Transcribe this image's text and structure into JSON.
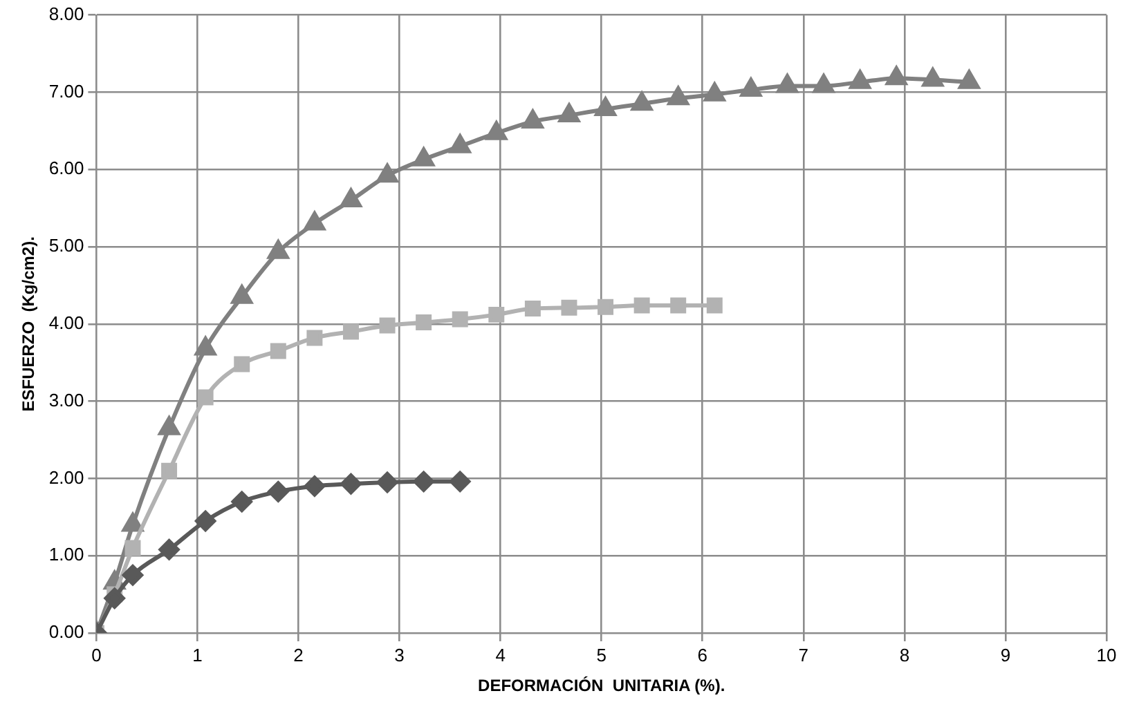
{
  "chart_data": {
    "type": "line",
    "xlabel": "DEFORMACIÓN  UNITARIA (%).",
    "ylabel": "ESFUERZO  (Kg/cm2).",
    "xlim": [
      0,
      10
    ],
    "xticks": [
      0,
      1,
      2,
      3,
      4,
      5,
      6,
      7,
      8,
      9,
      10
    ],
    "ylim": [
      0,
      8
    ],
    "yticks": [
      {
        "value": 0,
        "label": "0.00"
      },
      {
        "value": 1,
        "label": "1.00"
      },
      {
        "value": 2,
        "label": "2.00"
      },
      {
        "value": 3,
        "label": "3.00"
      },
      {
        "value": 4,
        "label": "4.00"
      },
      {
        "value": 5,
        "label": "5.00"
      },
      {
        "value": 6,
        "label": "6.00"
      },
      {
        "value": 7,
        "label": "7.00"
      },
      {
        "value": 8,
        "label": "8.00"
      }
    ],
    "grid": true,
    "legend": false,
    "line_style": "solid",
    "series": [
      {
        "color": "#595959",
        "marker": "diamond",
        "x": [
          0,
          0.18,
          0.36,
          0.72,
          1.08,
          1.44,
          1.8,
          2.16,
          2.52,
          2.88,
          3.24,
          3.6
        ],
        "values": [
          0,
          0.45,
          0.75,
          1.08,
          1.45,
          1.7,
          1.83,
          1.9,
          1.93,
          1.95,
          1.96,
          1.96
        ]
      },
      {
        "color": "#b2b2b2",
        "marker": "square",
        "x": [
          0,
          0.18,
          0.36,
          0.72,
          1.08,
          1.44,
          1.8,
          2.16,
          2.52,
          2.88,
          3.24,
          3.6,
          3.96,
          4.32,
          4.68,
          5.04,
          5.4,
          5.76,
          6.12
        ],
        "values": [
          0,
          0.5,
          1.1,
          2.1,
          3.05,
          3.48,
          3.65,
          3.82,
          3.9,
          3.98,
          4.02,
          4.06,
          4.12,
          4.2,
          4.21,
          4.22,
          4.24,
          4.24,
          4.24
        ]
      },
      {
        "color": "#808080",
        "marker": "triangle",
        "x": [
          0,
          0.18,
          0.36,
          0.72,
          1.08,
          1.44,
          1.8,
          2.16,
          2.52,
          2.88,
          3.24,
          3.6,
          3.96,
          4.32,
          4.68,
          5.04,
          5.4,
          5.76,
          6.12,
          6.48,
          6.84,
          7.2,
          7.56,
          7.92,
          8.28,
          8.64
        ],
        "values": [
          0,
          0.65,
          1.4,
          2.65,
          3.68,
          4.35,
          4.93,
          5.3,
          5.6,
          5.92,
          6.13,
          6.3,
          6.47,
          6.62,
          6.7,
          6.78,
          6.85,
          6.92,
          6.97,
          7.03,
          7.08,
          7.08,
          7.13,
          7.18,
          7.16,
          7.13
        ]
      }
    ]
  }
}
